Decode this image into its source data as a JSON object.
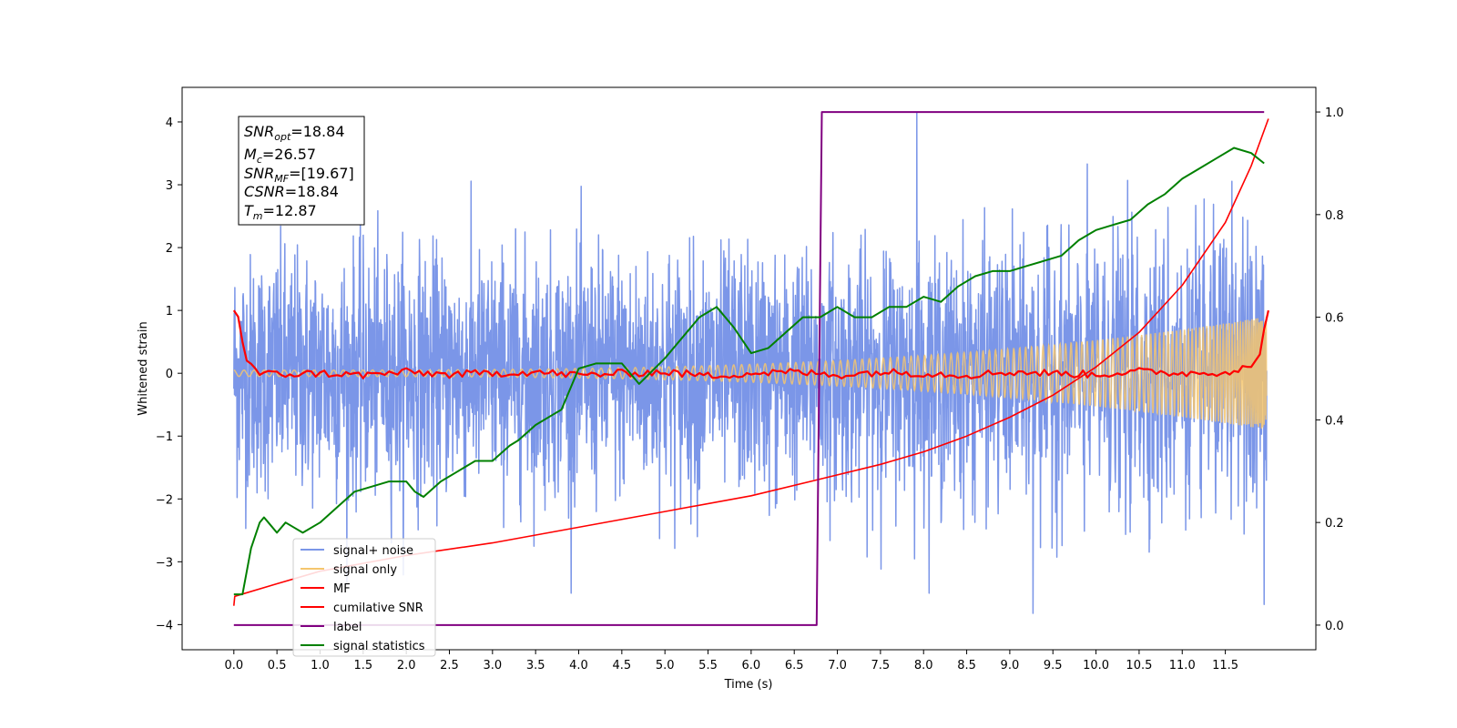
{
  "chart_data": {
    "type": "line",
    "xlabel": "Time (s)",
    "ylabel": "Whitened strain",
    "ylabel_right": "",
    "xlim": [
      -0.6,
      12.55
    ],
    "ylim": [
      -4.4,
      4.55
    ],
    "ylim_right": [
      -0.048,
      1.048
    ],
    "x_ticks": [
      "0.0",
      "0.5",
      "1.0",
      "1.5",
      "2.0",
      "2.5",
      "3.0",
      "3.5",
      "4.0",
      "4.5",
      "5.0",
      "5.5",
      "6.0",
      "6.5",
      "7.0",
      "7.5",
      "8.0",
      "8.5",
      "9.0",
      "9.5",
      "10.0",
      "10.5",
      "11.0",
      "11.5"
    ],
    "y_ticks": [
      "4",
      "3",
      "2",
      "1",
      "0",
      "−1",
      "−2",
      "−3",
      "−4"
    ],
    "y_ticks_right": [
      "1.0",
      "0.8",
      "0.6",
      "0.4",
      "0.2",
      "0.0"
    ],
    "grid": false,
    "legend_position": "lower-left",
    "info_box": {
      "snr_opt": "=18.84",
      "mc": "=26.57",
      "snr_mf": "=[19.67]",
      "csnr": "=18.84",
      "tm": "=12.87"
    },
    "series": [
      {
        "name": "signal+ noise",
        "axis": "left",
        "color": "#7b96e8",
        "kind": "noise",
        "noise_amplitude": 1.0,
        "peaks": [
          {
            "x": 7.92,
            "y": 4.15
          },
          {
            "x": 9.27,
            "y": -3.82
          },
          {
            "x": 11.95,
            "y": -3.68
          }
        ]
      },
      {
        "name": "signal only",
        "axis": "left",
        "color": "#f5c66e",
        "kind": "chirp",
        "amplitude_start": 0.05,
        "amplitude_end": 0.9,
        "t_merge": 11.98
      },
      {
        "name": "MF",
        "axis": "left",
        "color": "#ff0000",
        "x": [
          0.0,
          0.05,
          0.1,
          0.15,
          0.2,
          0.3,
          0.5,
          1.0,
          1.5,
          2.0,
          2.5,
          3.0,
          3.5,
          4.0,
          4.5,
          5.0,
          5.5,
          6.0,
          6.5,
          7.0,
          7.5,
          8.0,
          8.5,
          9.0,
          9.5,
          10.0,
          10.5,
          11.0,
          11.5,
          11.8,
          11.9,
          11.95,
          12.0
        ],
        "y": [
          1.0,
          0.9,
          0.5,
          0.2,
          0.15,
          0.0,
          -0.02,
          0.0,
          -0.03,
          0.02,
          -0.02,
          0.0,
          0.02,
          -0.03,
          0.0,
          0.02,
          -0.04,
          0.0,
          0.02,
          -0.03,
          0.02,
          0.0,
          -0.03,
          0.02,
          0.0,
          -0.02,
          0.03,
          0.0,
          0.02,
          0.1,
          0.3,
          0.7,
          1.0
        ]
      },
      {
        "name": "cumilative SNR",
        "axis": "left",
        "color": "#ff0000",
        "x": [
          0.0,
          0.01,
          0.5,
          1.0,
          2.0,
          3.0,
          4.0,
          5.0,
          6.0,
          6.75,
          7.5,
          8.0,
          8.5,
          9.0,
          9.5,
          10.0,
          10.5,
          11.0,
          11.5,
          11.8,
          12.0
        ],
        "y": [
          -3.7,
          -3.55,
          -3.35,
          -3.15,
          -2.9,
          -2.7,
          -2.45,
          -2.2,
          -1.95,
          -1.7,
          -1.45,
          -1.25,
          -1.0,
          -0.7,
          -0.35,
          0.1,
          0.65,
          1.4,
          2.4,
          3.3,
          4.05
        ]
      },
      {
        "name": "label",
        "axis": "right",
        "color": "#800080",
        "x": [
          0.0,
          6.76,
          6.82,
          11.95
        ],
        "y": [
          0.0,
          0.0,
          1.0,
          1.0
        ]
      },
      {
        "name": "signal statistics",
        "axis": "right",
        "color": "#008000",
        "x": [
          0.0,
          0.1,
          0.2,
          0.3,
          0.35,
          0.4,
          0.5,
          0.6,
          0.7,
          0.8,
          1.0,
          1.2,
          1.4,
          1.6,
          1.8,
          2.0,
          2.1,
          2.2,
          2.4,
          2.6,
          2.8,
          3.0,
          3.2,
          3.3,
          3.5,
          3.7,
          3.8,
          4.0,
          4.2,
          4.5,
          4.7,
          5.0,
          5.2,
          5.4,
          5.6,
          5.8,
          6.0,
          6.2,
          6.4,
          6.6,
          6.8,
          7.0,
          7.2,
          7.4,
          7.6,
          7.8,
          8.0,
          8.2,
          8.4,
          8.6,
          8.8,
          9.0,
          9.2,
          9.4,
          9.6,
          9.8,
          10.0,
          10.2,
          10.4,
          10.6,
          10.8,
          11.0,
          11.2,
          11.4,
          11.6,
          11.8,
          11.95
        ],
        "y": [
          0.06,
          0.06,
          0.15,
          0.2,
          0.21,
          0.2,
          0.18,
          0.2,
          0.19,
          0.18,
          0.2,
          0.23,
          0.26,
          0.27,
          0.28,
          0.28,
          0.26,
          0.25,
          0.28,
          0.3,
          0.32,
          0.32,
          0.35,
          0.36,
          0.39,
          0.41,
          0.42,
          0.5,
          0.51,
          0.51,
          0.47,
          0.52,
          0.56,
          0.6,
          0.62,
          0.58,
          0.53,
          0.54,
          0.57,
          0.6,
          0.6,
          0.62,
          0.6,
          0.6,
          0.62,
          0.62,
          0.64,
          0.63,
          0.66,
          0.68,
          0.69,
          0.69,
          0.7,
          0.71,
          0.72,
          0.75,
          0.77,
          0.78,
          0.79,
          0.82,
          0.84,
          0.87,
          0.89,
          0.91,
          0.93,
          0.92,
          0.9
        ]
      }
    ]
  }
}
